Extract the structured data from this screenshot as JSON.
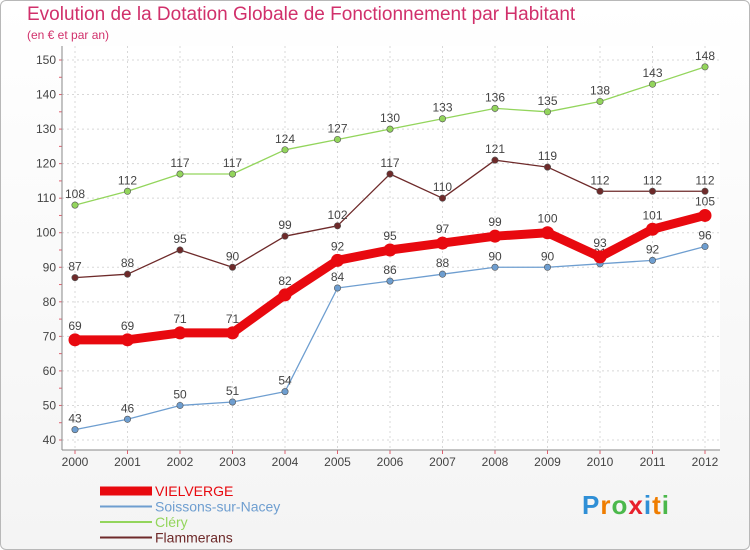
{
  "chart_data": {
    "type": "line",
    "title": "Evolution de la Dotation Globale de Fonctionnement par Habitant",
    "subtitle": "(en € et par an)",
    "xlabel": "",
    "ylabel": "",
    "categories": [
      "2000",
      "2001",
      "2002",
      "2003",
      "2004",
      "2005",
      "2006",
      "2007",
      "2008",
      "2009",
      "2010",
      "2011",
      "2012"
    ],
    "ylim": [
      40,
      150
    ],
    "yticks": [
      40,
      50,
      60,
      70,
      80,
      90,
      100,
      110,
      120,
      130,
      140,
      150
    ],
    "grid": true,
    "legend_position": "bottom-left",
    "series": [
      {
        "name": "VIELVERGE",
        "color": "#e8090f",
        "values": [
          69,
          69,
          71,
          71,
          82,
          92,
          95,
          97,
          99,
          100,
          93,
          101,
          105
        ]
      },
      {
        "name": "Soissons-sur-Nacey",
        "color": "#6e9ed0",
        "values": [
          43,
          46,
          50,
          51,
          54,
          84,
          86,
          88,
          90,
          90,
          91,
          92,
          96
        ]
      },
      {
        "name": "Cléry",
        "color": "#93d55c",
        "values": [
          108,
          112,
          117,
          117,
          124,
          127,
          130,
          133,
          136,
          135,
          138,
          143,
          148
        ]
      },
      {
        "name": "Flammerans",
        "color": "#6e2a2a",
        "values": [
          87,
          88,
          95,
          90,
          99,
          102,
          117,
          110,
          121,
          119,
          112,
          112,
          112
        ]
      }
    ]
  },
  "logo": {
    "text": "Proxiti",
    "letters": [
      "P",
      "r",
      "o",
      "x",
      "i",
      "t",
      "i"
    ],
    "colors": [
      "#2f8fd6",
      "#ef7d00",
      "#4bb84b",
      "#e8212c",
      "#2f8fd6",
      "#ef7d00",
      "#4bb84b"
    ]
  }
}
